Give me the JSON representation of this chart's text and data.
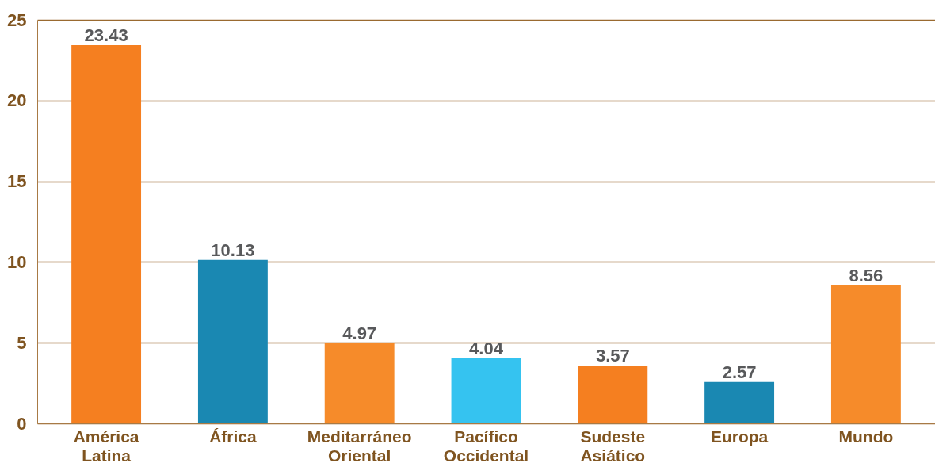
{
  "chart_data": {
    "type": "bar",
    "categories": [
      "América Latina",
      "África",
      "Meditarráneo Oriental",
      "Pacífico Occidental",
      "Sudeste Asiático",
      "Europa",
      "Mundo"
    ],
    "values": [
      23.43,
      10.13,
      4.97,
      4.04,
      3.57,
      2.57,
      8.56
    ],
    "colors": [
      "#f57f20",
      "#1a88b2",
      "#f68b2a",
      "#35c3f0",
      "#f57f20",
      "#1a88b2",
      "#f68b2a"
    ],
    "ylim": [
      0,
      25
    ],
    "yticks": [
      0,
      5,
      10,
      15,
      20,
      25
    ],
    "grid": "y",
    "data_labels": true,
    "legend": false
  }
}
